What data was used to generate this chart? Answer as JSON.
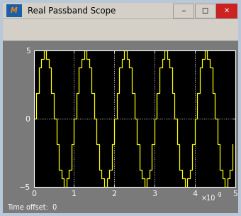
{
  "title": "Real Passband Scope",
  "signal_color": "#ffff00",
  "plot_bg": "#000000",
  "window_bg": "#7a7a7a",
  "frame_outer": "#b8c8d8",
  "titlebar_bg": "#d4d0c8",
  "toolbar_bg": "#d4d0c8",
  "axis_text_color": "#ffffff",
  "bottom_text_color": "#ffffff",
  "grid_color": "#ffffff",
  "xlim": [
    0,
    5
  ],
  "ylim": [
    -5,
    5
  ],
  "xticks": [
    0,
    1,
    2,
    3,
    4,
    5
  ],
  "yticks": [
    -5,
    0,
    5
  ],
  "time_offset_label": "Time offset:  0",
  "duration": 5e-09,
  "carrier_freq": 1000000000.0,
  "amplitude": 5.0,
  "num_steps": 16,
  "figwidth": 3.4,
  "figheight": 3.04,
  "dpi": 100
}
